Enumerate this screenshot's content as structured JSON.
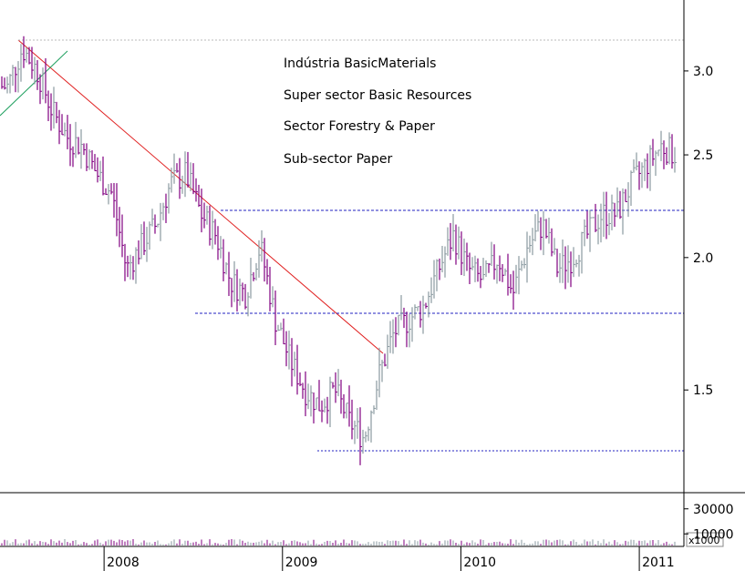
{
  "chart_data": {
    "type": "ohlc",
    "y_scale": "log",
    "ylim": [
      1.2,
      3.5
    ],
    "y_ticks": [
      {
        "label": "3.0",
        "value": 3.0
      },
      {
        "label": "2.5",
        "value": 2.5
      },
      {
        "label": "2.0",
        "value": 2.0
      },
      {
        "label": "1.5",
        "value": 1.5
      }
    ],
    "x_range": [
      "2007-06",
      "2011-03"
    ],
    "x_ticks": [
      {
        "label": "2008",
        "date": "2008-01"
      },
      {
        "label": "2009",
        "date": "2009-01"
      },
      {
        "label": "2010",
        "date": "2010-01"
      },
      {
        "label": "2011",
        "date": "2011-01"
      }
    ],
    "annotations": [
      "Indústria BasicMaterials",
      "Super sector Basic Resources",
      "Sector Forestry & Paper",
      "Sub-sector Paper"
    ],
    "close_series": [
      [
        "2007-06",
        2.9
      ],
      [
        "2007-07",
        3.15
      ],
      [
        "2007-08",
        3.0
      ],
      [
        "2007-09",
        2.75
      ],
      [
        "2007-10",
        2.6
      ],
      [
        "2007-11",
        2.55
      ],
      [
        "2007-12",
        2.4
      ],
      [
        "2008-01",
        2.3
      ],
      [
        "2008-02",
        1.95
      ],
      [
        "2008-03",
        2.05
      ],
      [
        "2008-04",
        2.15
      ],
      [
        "2008-05",
        2.35
      ],
      [
        "2008-06",
        2.4
      ],
      [
        "2008-07",
        2.2
      ],
      [
        "2008-08",
        2.1
      ],
      [
        "2008-09",
        1.9
      ],
      [
        "2008-10",
        1.85
      ],
      [
        "2008-11",
        2.05
      ],
      [
        "2008-12",
        1.75
      ],
      [
        "2009-01",
        1.6
      ],
      [
        "2009-02",
        1.5
      ],
      [
        "2009-03",
        1.45
      ],
      [
        "2009-04",
        1.5
      ],
      [
        "2009-05",
        1.4
      ],
      [
        "2009-06",
        1.35
      ],
      [
        "2009-07",
        1.55
      ],
      [
        "2009-08",
        1.7
      ],
      [
        "2009-09",
        1.75
      ],
      [
        "2009-10",
        1.8
      ],
      [
        "2009-11",
        1.95
      ],
      [
        "2009-12",
        2.1
      ],
      [
        "2010-01",
        1.95
      ],
      [
        "2010-02",
        1.9
      ],
      [
        "2010-03",
        2.0
      ],
      [
        "2010-04",
        1.85
      ],
      [
        "2010-05",
        2.05
      ],
      [
        "2010-06",
        2.15
      ],
      [
        "2010-07",
        1.95
      ],
      [
        "2010-08",
        2.0
      ],
      [
        "2010-09",
        2.1
      ],
      [
        "2010-10",
        2.2
      ],
      [
        "2010-11",
        2.2
      ],
      [
        "2010-12",
        2.35
      ],
      [
        "2011-01",
        2.45
      ],
      [
        "2011-02",
        2.55
      ],
      [
        "2011-03",
        2.5
      ]
    ],
    "volume": {
      "unit_label": "x1000",
      "ticks": [
        {
          "label": "30000",
          "value": 30000
        },
        {
          "label": "10000",
          "value": 10000
        }
      ]
    }
  }
}
